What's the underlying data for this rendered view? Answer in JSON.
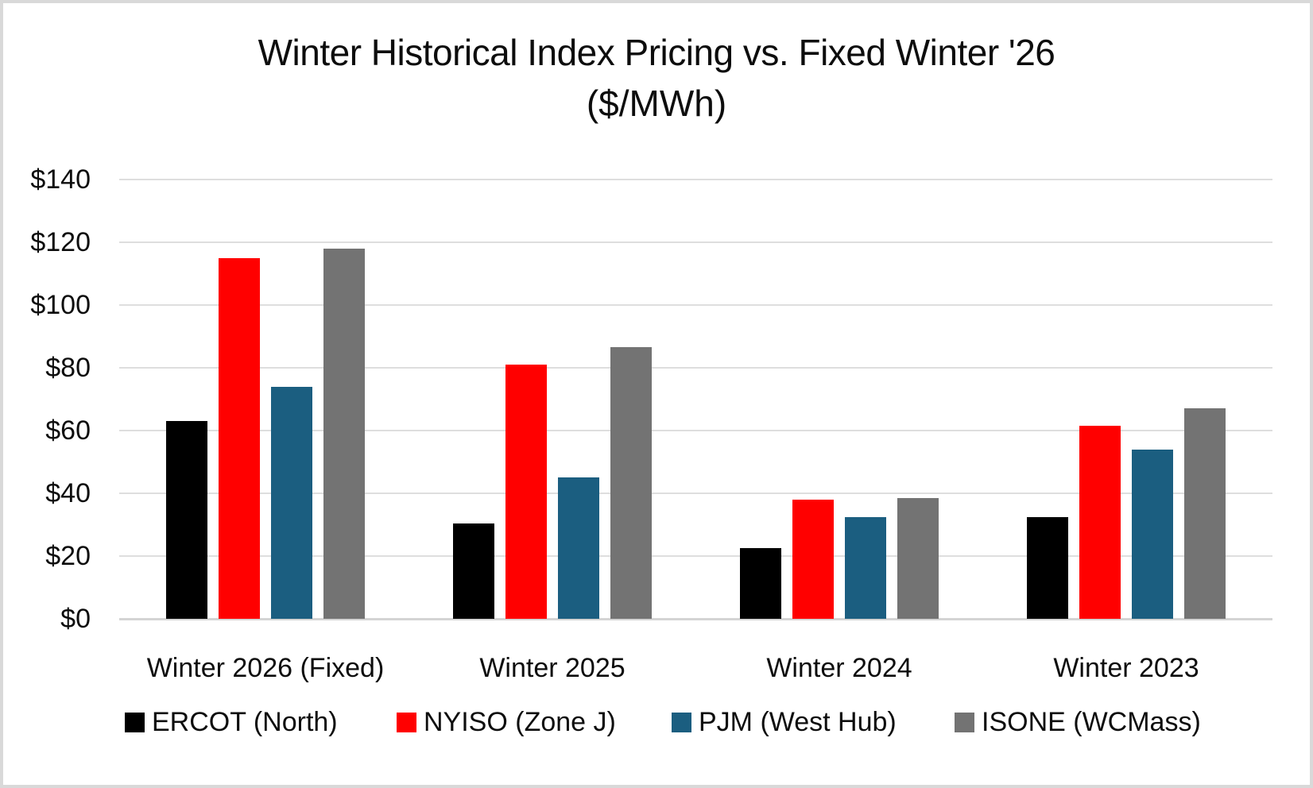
{
  "chart_data": {
    "type": "bar",
    "title": "Winter Historical Index Pricing vs. Fixed Winter '26",
    "subtitle": "($/MWh)",
    "categories": [
      "Winter 2026 (Fixed)",
      "Winter 2025",
      "Winter 2024",
      "Winter 2023"
    ],
    "series": [
      {
        "name": "ERCOT (North)",
        "color": "#000000",
        "values": [
          63,
          30.5,
          22.5,
          32.5
        ]
      },
      {
        "name": "NYISO (Zone J)",
        "color": "#ff0000",
        "values": [
          115,
          81,
          38,
          61.5
        ]
      },
      {
        "name": "PJM (West Hub)",
        "color": "#1b5e80",
        "values": [
          74,
          45,
          32.5,
          54
        ]
      },
      {
        "name": "ISONE (WCMass)",
        "color": "#737373",
        "values": [
          118,
          86.5,
          38.5,
          67
        ]
      }
    ],
    "y_ticks": [
      "$140",
      "$120",
      "$100",
      "$80",
      "$60",
      "$40",
      "$20",
      "$0"
    ],
    "ylim": [
      0,
      140
    ],
    "y_step": 20,
    "xlabel": "",
    "ylabel": "",
    "grid": true,
    "legend_position": "bottom",
    "currency_prefix": "$"
  }
}
